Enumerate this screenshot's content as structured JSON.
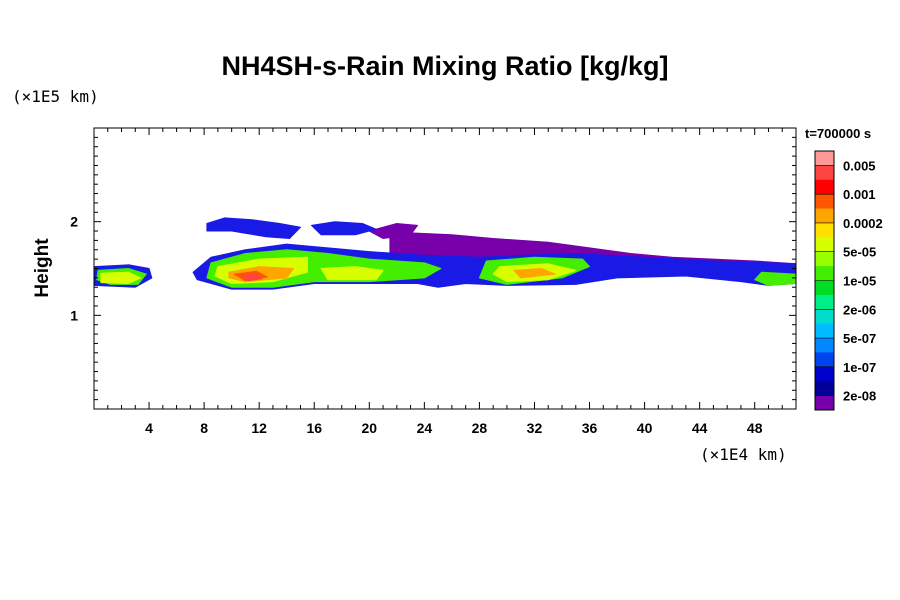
{
  "chart_data": {
    "type": "heatmap",
    "title": "NH4SH-s-Rain Mixing Ratio [kg/kg]",
    "ylabel": "Height",
    "xlabel": "",
    "x_unit": "(×1E4 km)",
    "y_unit": "(×1E5 km)",
    "time_label": "t=700000 s",
    "xlim": [
      0,
      51
    ],
    "ylim": [
      0,
      3
    ],
    "x_ticks": [
      4,
      8,
      12,
      16,
      20,
      24,
      28,
      32,
      36,
      40,
      44,
      48
    ],
    "y_ticks": [
      1,
      2
    ],
    "colorbar": {
      "labels": [
        "0.005",
        "0.001",
        "0.0002",
        "5e-05",
        "1e-05",
        "2e-06",
        "5e-07",
        "1e-07",
        "2e-08"
      ],
      "colors": [
        "#ff9999",
        "#ff4444",
        "#ff0000",
        "#ff5500",
        "#ffa500",
        "#ffe000",
        "#d8ff00",
        "#99ff00",
        "#44ee00",
        "#00dd22",
        "#00ee88",
        "#00ddcc",
        "#00bbff",
        "#0088ff",
        "#0044ee",
        "#0000cc",
        "#000099",
        "#7700aa"
      ]
    },
    "regions": [
      {
        "level": 0,
        "points": [
          [
            21.5,
            1.82
          ],
          [
            23,
            1.88
          ],
          [
            26,
            1.86
          ],
          [
            29,
            1.82
          ],
          [
            33,
            1.78
          ],
          [
            36,
            1.72
          ],
          [
            39,
            1.66
          ],
          [
            42,
            1.62
          ],
          [
            45,
            1.6
          ],
          [
            48,
            1.58
          ],
          [
            51,
            1.55
          ],
          [
            51,
            1.46
          ],
          [
            46,
            1.46
          ],
          [
            40,
            1.5
          ],
          [
            34,
            1.54
          ],
          [
            28,
            1.56
          ],
          [
            24,
            1.6
          ],
          [
            21.5,
            1.66
          ]
        ]
      },
      {
        "level": 0,
        "points": [
          [
            20,
            1.9
          ],
          [
            22,
            1.98
          ],
          [
            23.5,
            1.96
          ],
          [
            23,
            1.86
          ],
          [
            21,
            1.82
          ]
        ]
      },
      {
        "level": 1,
        "points": [
          [
            8.2,
            1.98
          ],
          [
            9.5,
            2.04
          ],
          [
            11.5,
            2.02
          ],
          [
            13.5,
            1.98
          ],
          [
            15,
            1.94
          ],
          [
            14.2,
            1.82
          ],
          [
            12.5,
            1.84
          ],
          [
            10,
            1.9
          ],
          [
            8.2,
            1.9
          ]
        ]
      },
      {
        "level": 1,
        "points": [
          [
            15.8,
            1.96
          ],
          [
            17.5,
            2.0
          ],
          [
            19.5,
            1.98
          ],
          [
            20.5,
            1.92
          ],
          [
            19,
            1.86
          ],
          [
            16.5,
            1.86
          ]
        ]
      },
      {
        "level": 1,
        "points": [
          [
            0,
            1.52
          ],
          [
            2.5,
            1.54
          ],
          [
            4,
            1.5
          ],
          [
            4.2,
            1.4
          ],
          [
            3,
            1.3
          ],
          [
            0,
            1.32
          ]
        ]
      },
      {
        "level": 1,
        "points": [
          [
            8.5,
            1.62
          ],
          [
            11,
            1.7
          ],
          [
            14,
            1.76
          ],
          [
            17,
            1.72
          ],
          [
            20,
            1.68
          ],
          [
            24,
            1.64
          ],
          [
            28,
            1.62
          ],
          [
            31,
            1.64
          ],
          [
            35,
            1.66
          ],
          [
            40,
            1.62
          ],
          [
            45,
            1.58
          ],
          [
            51,
            1.55
          ],
          [
            51,
            1.34
          ],
          [
            49,
            1.32
          ],
          [
            47,
            1.36
          ],
          [
            43,
            1.42
          ],
          [
            38,
            1.4
          ],
          [
            35,
            1.33
          ],
          [
            30,
            1.32
          ],
          [
            27,
            1.34
          ],
          [
            25,
            1.3
          ],
          [
            23.5,
            1.34
          ],
          [
            20,
            1.34
          ],
          [
            16,
            1.34
          ],
          [
            13,
            1.28
          ],
          [
            10,
            1.28
          ],
          [
            7.5,
            1.38
          ],
          [
            7.2,
            1.46
          ]
        ]
      },
      {
        "level": 2,
        "points": [
          [
            0.3,
            1.48
          ],
          [
            2.5,
            1.5
          ],
          [
            3.8,
            1.44
          ],
          [
            3.2,
            1.33
          ],
          [
            1.2,
            1.33
          ],
          [
            0.2,
            1.38
          ]
        ]
      },
      {
        "level": 2,
        "points": [
          [
            8.5,
            1.56
          ],
          [
            11,
            1.66
          ],
          [
            14,
            1.7
          ],
          [
            17,
            1.66
          ],
          [
            20,
            1.6
          ],
          [
            24,
            1.56
          ],
          [
            25.2,
            1.5
          ],
          [
            24,
            1.4
          ],
          [
            20,
            1.36
          ],
          [
            16,
            1.36
          ],
          [
            13,
            1.3
          ],
          [
            10,
            1.3
          ],
          [
            8.2,
            1.4
          ]
        ]
      },
      {
        "level": 2,
        "points": [
          [
            28.5,
            1.58
          ],
          [
            32,
            1.62
          ],
          [
            35.5,
            1.6
          ],
          [
            36,
            1.52
          ],
          [
            34,
            1.4
          ],
          [
            30,
            1.33
          ],
          [
            28,
            1.4
          ]
        ]
      },
      {
        "level": 2,
        "points": [
          [
            48.5,
            1.46
          ],
          [
            51,
            1.44
          ],
          [
            51,
            1.34
          ],
          [
            49,
            1.32
          ],
          [
            48,
            1.38
          ]
        ]
      },
      {
        "level": 3,
        "points": [
          [
            0.5,
            1.45
          ],
          [
            2.5,
            1.46
          ],
          [
            3.4,
            1.4
          ],
          [
            2.5,
            1.34
          ],
          [
            0.5,
            1.35
          ]
        ]
      },
      {
        "level": 3,
        "points": [
          [
            9,
            1.52
          ],
          [
            12,
            1.6
          ],
          [
            15.5,
            1.62
          ],
          [
            15.5,
            1.46
          ],
          [
            13,
            1.36
          ],
          [
            10,
            1.34
          ],
          [
            8.8,
            1.42
          ]
        ]
      },
      {
        "level": 3,
        "points": [
          [
            16.5,
            1.5
          ],
          [
            19,
            1.52
          ],
          [
            21,
            1.48
          ],
          [
            20.5,
            1.38
          ],
          [
            17,
            1.38
          ]
        ]
      },
      {
        "level": 3,
        "points": [
          [
            29.5,
            1.52
          ],
          [
            33,
            1.55
          ],
          [
            35,
            1.48
          ],
          [
            33,
            1.38
          ],
          [
            30,
            1.36
          ],
          [
            29,
            1.44
          ]
        ]
      },
      {
        "level": 4,
        "points": [
          [
            9.8,
            1.46
          ],
          [
            12,
            1.52
          ],
          [
            14.5,
            1.5
          ],
          [
            14,
            1.4
          ],
          [
            11,
            1.36
          ],
          [
            9.8,
            1.4
          ]
        ]
      },
      {
        "level": 4,
        "points": [
          [
            30.5,
            1.48
          ],
          [
            32.5,
            1.5
          ],
          [
            33.5,
            1.44
          ],
          [
            31,
            1.4
          ]
        ]
      },
      {
        "level": 5,
        "points": [
          [
            10.2,
            1.44
          ],
          [
            11.8,
            1.47
          ],
          [
            12.6,
            1.41
          ],
          [
            11,
            1.37
          ]
        ]
      },
      {
        "level": 6,
        "points": [
          [
            10.8,
            1.42
          ],
          [
            11.8,
            1.44
          ],
          [
            12.2,
            1.39
          ],
          [
            11.2,
            1.37
          ]
        ]
      }
    ]
  }
}
